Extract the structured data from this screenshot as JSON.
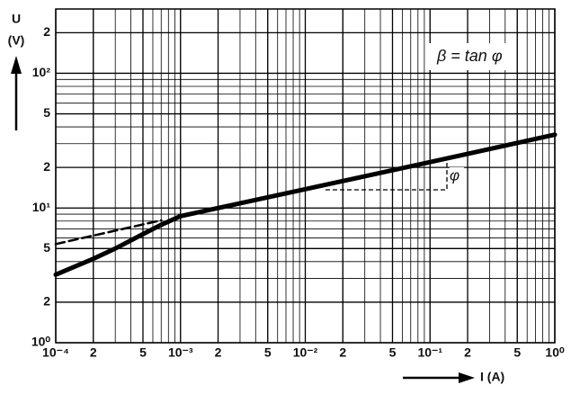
{
  "chart_data": {
    "type": "line",
    "y_label": "U",
    "y_unit": "(V)",
    "x_label": "I (A)",
    "annotations": [
      "β = tan φ",
      "φ"
    ],
    "xscale": "log",
    "yscale": "log",
    "grid": true,
    "minor_grid": true,
    "xlim": [
      0.0001,
      1
    ],
    "ylim": [
      1,
      300
    ],
    "xticks": [
      {
        "value": 0.0001,
        "label": "10⁻⁴"
      },
      {
        "value": 0.0002,
        "label": "2"
      },
      {
        "value": 0.0005,
        "label": "5"
      },
      {
        "value": 0.001,
        "label": "10⁻³"
      },
      {
        "value": 0.002,
        "label": "2"
      },
      {
        "value": 0.005,
        "label": "5"
      },
      {
        "value": 0.01,
        "label": "10⁻²"
      },
      {
        "value": 0.02,
        "label": "2"
      },
      {
        "value": 0.05,
        "label": "5"
      },
      {
        "value": 0.1,
        "label": "10⁻¹"
      },
      {
        "value": 0.2,
        "label": "2"
      },
      {
        "value": 0.5,
        "label": "5"
      },
      {
        "value": 1,
        "label": "10⁰"
      }
    ],
    "yticks": [
      {
        "value": 1,
        "label": "10⁰"
      },
      2,
      5,
      {
        "value": 10,
        "label": "10¹"
      },
      {
        "value": 20,
        "label": "2"
      },
      {
        "value": 50,
        "label": "5"
      },
      {
        "value": 100,
        "label": "10²"
      },
      {
        "value": 200,
        "label": "2"
      }
    ],
    "series": [
      {
        "style": "solid",
        "color": "#000000",
        "x": [
          0.0001,
          0.0002,
          0.0003,
          0.0005,
          0.0007,
          0.001,
          0.01,
          0.1,
          1
        ],
        "values": [
          3.2,
          4.2,
          5.0,
          6.4,
          7.5,
          8.7,
          13.8,
          21.9,
          35
        ]
      },
      {
        "style": "dashed",
        "color": "#000000",
        "x": [
          0.0001,
          0.0007
        ],
        "values": [
          5.4,
          8.1
        ]
      }
    ]
  }
}
